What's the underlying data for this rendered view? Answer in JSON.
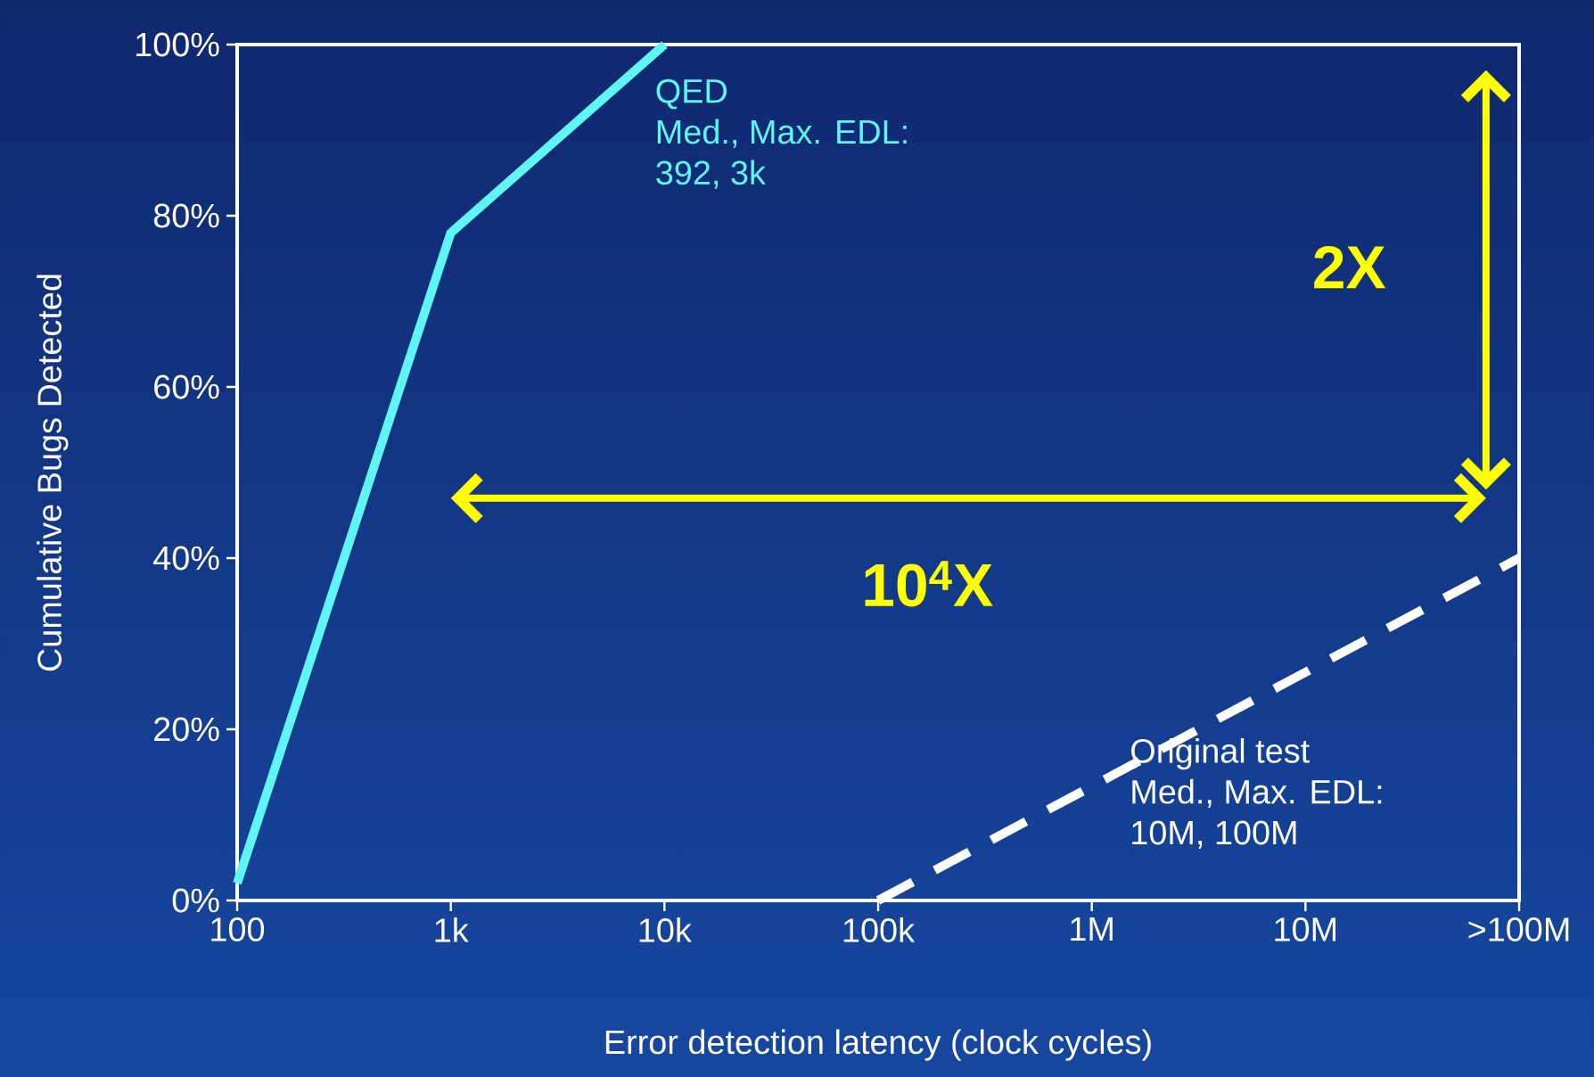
{
  "chart_data": {
    "type": "line",
    "xlabel": "Error detection latency (clock cycles)",
    "ylabel": "Cumulative Bugs Detected",
    "log": "x",
    "xlim": [
      100,
      100000000
    ],
    "xticks": [
      {
        "value": 100,
        "label": "100"
      },
      {
        "value": 1000,
        "label": "1k"
      },
      {
        "value": 10000,
        "label": "10k"
      },
      {
        "value": 100000,
        "label": "100k"
      },
      {
        "value": 1000000,
        "label": "1M"
      },
      {
        "value": 10000000,
        "label": "10M"
      },
      {
        "value": 100000000,
        "label": ">100M"
      }
    ],
    "ylim": [
      0,
      100
    ],
    "yticks": [
      {
        "value": 0,
        "label": "0%"
      },
      {
        "value": 20,
        "label": "20%"
      },
      {
        "value": 40,
        "label": "40%"
      },
      {
        "value": 60,
        "label": "60%"
      },
      {
        "value": 80,
        "label": "80%"
      },
      {
        "value": 100,
        "label": "100%"
      }
    ],
    "series": [
      {
        "name": "QED",
        "color": "#5ff5f5",
        "line_style": "solid",
        "x": [
          100,
          1000,
          10000
        ],
        "values": [
          2,
          78,
          100
        ]
      },
      {
        "name": "Original test",
        "color": "#ffffff",
        "line_style": "dashed",
        "x": [
          100000,
          100000000
        ],
        "values": [
          0,
          40
        ]
      }
    ],
    "annotations": [
      "Med., Max. EDL:",
      "392,  3k",
      "Med., Max. EDL:",
      "10M, 100M",
      "2X",
      "10$^{4}$X"
    ],
    "grid": false,
    "legend": false,
    "marker": "none"
  }
}
